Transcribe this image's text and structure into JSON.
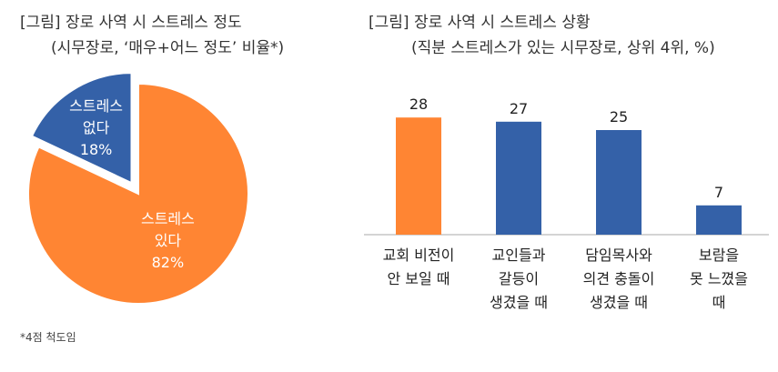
{
  "charts": [
    {
      "title": "[그림] 장로 사역 시 스트레스 정도",
      "subtitle": "(시무장로, ‘매우+어느 정도’ 비율*)",
      "note": "*4점 척도임"
    },
    {
      "title": "[그림] 장로 사역 시 스트레스 상황",
      "subtitle": "(직분 스트레스가 있는 시무장로, 상위 4위, %)"
    }
  ],
  "chart_data": [
    {
      "type": "pie",
      "title": "[그림] 장로 사역 시 스트레스 정도",
      "subtitle": "(시무장로, ‘매우+어느 정도’ 비율*)",
      "slices": [
        {
          "label": [
            "스트레스",
            "있다"
          ],
          "value": 82,
          "value_label": "82%",
          "color": "#ff8533",
          "exploded": false
        },
        {
          "label": [
            "스트레스",
            "없다"
          ],
          "value": 18,
          "value_label": "18%",
          "color": "#3461a8",
          "exploded": true
        }
      ],
      "note": "*4점 척도임"
    },
    {
      "type": "bar",
      "title": "[그림] 장로 사역 시 스트레스 상황",
      "subtitle": "(직분 스트레스가 있는 시무장로, 상위 4위, %)",
      "categories": [
        [
          "교회 비전이",
          "안 보일 때"
        ],
        [
          "교인들과",
          "갈등이",
          "생겼을 때"
        ],
        [
          "담임목사와",
          "의견 충돌이",
          "생겼을 때"
        ],
        [
          "보람을",
          "못 느꼈을",
          "때"
        ]
      ],
      "values": [
        28,
        27,
        25,
        7
      ],
      "colors": [
        "#ff8533",
        "#3461a8",
        "#3461a8",
        "#3461a8"
      ],
      "ylim": [
        0,
        30
      ]
    }
  ]
}
